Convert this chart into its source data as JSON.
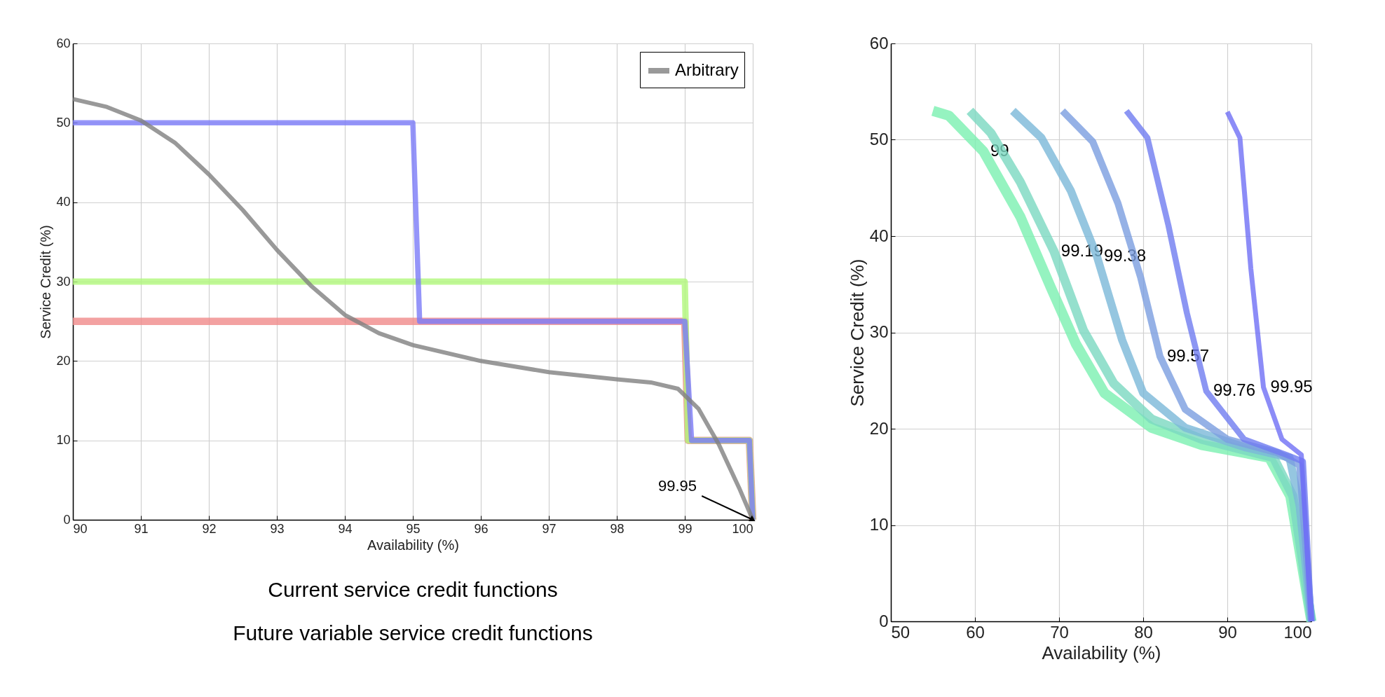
{
  "chart_data": [
    {
      "type": "line",
      "xlabel": "Availability (%)",
      "ylabel": "Service Credit (%)",
      "xlim": [
        90,
        100
      ],
      "ylim": [
        0,
        60
      ],
      "xticks": [
        90,
        91,
        92,
        93,
        94,
        95,
        96,
        97,
        98,
        99,
        100
      ],
      "yticks": [
        0,
        10,
        20,
        30,
        40,
        50,
        60
      ],
      "grid": true,
      "legend": "top right",
      "series": [
        {
          "color": "#f08a8a",
          "x": [
            90,
            99,
            99.05,
            99.95,
            100
          ],
          "values": [
            25,
            25,
            10,
            10,
            0
          ]
        },
        {
          "color": "#b0f87a",
          "x": [
            90,
            99,
            99.05,
            99.95,
            100
          ],
          "values": [
            30,
            30,
            10,
            10,
            0
          ]
        },
        {
          "color": "#7a7af8",
          "x": [
            90,
            95,
            95.1,
            99,
            99.1,
            99.95,
            100
          ],
          "values": [
            50,
            50,
            25,
            25,
            10,
            10,
            0
          ]
        },
        {
          "name": "Arbitrary",
          "color": "#808080",
          "x": [
            90,
            90.5,
            91,
            91.5,
            92,
            92.5,
            93,
            93.5,
            94,
            94.5,
            95,
            96,
            97,
            98,
            98.5,
            98.9,
            99.2,
            99.5,
            99.8,
            100
          ],
          "values": [
            53,
            52,
            50.3,
            47.5,
            43.5,
            39,
            34,
            29.5,
            25.8,
            23.5,
            22,
            20,
            18.6,
            17.7,
            17.3,
            16.5,
            14,
            9.5,
            4,
            0
          ]
        }
      ],
      "annotations": [
        {
          "text": "99.95",
          "x": 100,
          "y": 0
        },
        "Current service credit functions",
        "Future variable service credit functions"
      ]
    },
    {
      "type": "line",
      "xlabel": "Availability (%)",
      "ylabel": "Service Credit (%)",
      "xlim": [
        50,
        100
      ],
      "ylim": [
        0,
        60
      ],
      "xticks": [
        50,
        60,
        70,
        80,
        90,
        100
      ],
      "yticks": [
        0,
        10,
        20,
        30,
        40,
        50,
        60
      ],
      "grid": true,
      "series": [
        {
          "name": "99",
          "color": "#7af0b0",
          "x": [
            55,
            56.9,
            61,
            65.4,
            69,
            72,
            75.4,
            81,
            87,
            95,
            97.5,
            100
          ],
          "values": [
            53,
            52.5,
            48.8,
            42,
            34.7,
            28.8,
            23.7,
            20.1,
            18.3,
            17,
            13,
            0
          ]
        },
        {
          "name": "99.19",
          "color": "#7ad8c0",
          "x": [
            59.4,
            61.9,
            65.4,
            69.4,
            72.9,
            76.5,
            81,
            87,
            95.5,
            97.8,
            100
          ],
          "values": [
            53,
            50.7,
            45.6,
            38.4,
            30.2,
            24.7,
            21,
            18.9,
            17,
            13,
            0
          ]
        },
        {
          "name": "99.38",
          "color": "#7ab8d8",
          "x": [
            64.5,
            67.9,
            71.4,
            74.5,
            77.5,
            80,
            85,
            92,
            97.4,
            98.6,
            100
          ],
          "values": [
            53,
            50.2,
            44.7,
            37.9,
            29.2,
            23.7,
            20.1,
            18.1,
            17,
            12,
            0
          ]
        },
        {
          "name": "99.57",
          "color": "#7a9ee0",
          "x": [
            70.4,
            74,
            77,
            79.7,
            82,
            85,
            90,
            96,
            98.6,
            100
          ],
          "values": [
            53,
            49.8,
            43.4,
            35.7,
            27.5,
            22,
            18.9,
            17.5,
            16.2,
            0
          ]
        },
        {
          "name": "99.76",
          "color": "#6f7cf0",
          "x": [
            78,
            80.5,
            83,
            85.2,
            87.5,
            92,
            97,
            99,
            100
          ],
          "values": [
            53,
            50.2,
            41.1,
            32,
            23.9,
            18.9,
            17.3,
            16.6,
            0
          ]
        },
        {
          "name": "99.95",
          "color": "#6f6ff5",
          "x": [
            90,
            91.5,
            92.8,
            94.3,
            96.5,
            98.8,
            100
          ],
          "values": [
            52.9,
            50.2,
            36.6,
            24.3,
            18.9,
            17.3,
            0
          ]
        }
      ]
    }
  ]
}
